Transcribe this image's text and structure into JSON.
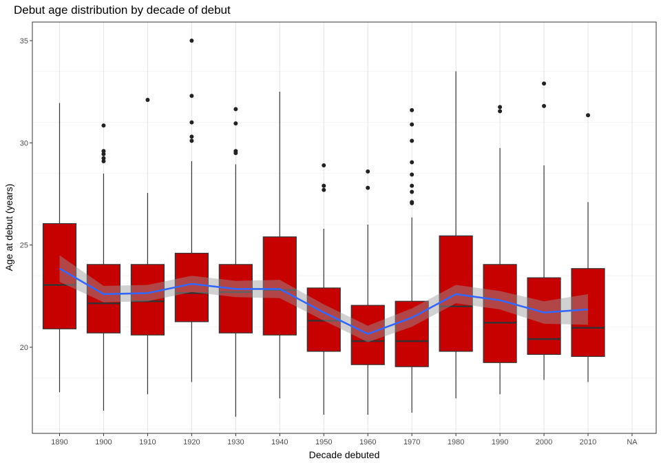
{
  "chart_data": {
    "type": "boxplot",
    "title": "Debut age distribution by decade of debut",
    "xlabel": "Decade debuted",
    "ylabel": "Age at debut (years)",
    "categories": [
      "1890",
      "1900",
      "1910",
      "1920",
      "1930",
      "1940",
      "1950",
      "1960",
      "1970",
      "1980",
      "1990",
      "2000",
      "2010",
      "NA"
    ],
    "yticks": [
      20,
      25,
      30,
      35
    ],
    "ylim": [
      16.0,
      36.0
    ],
    "grid": true,
    "boxes": [
      {
        "category": "1890",
        "whisker_low": 17.8,
        "q1": 20.9,
        "median": 23.05,
        "q3": 26.05,
        "whisker_high": 31.95,
        "outliers": []
      },
      {
        "category": "1900",
        "whisker_low": 16.9,
        "q1": 20.7,
        "median": 22.15,
        "q3": 24.05,
        "whisker_high": 28.5,
        "outliers": [
          30.85,
          29.6,
          29.45,
          29.25,
          29.1
        ]
      },
      {
        "category": "1910",
        "whisker_low": 17.7,
        "q1": 20.6,
        "median": 22.25,
        "q3": 24.05,
        "whisker_high": 27.55,
        "outliers": [
          32.1
        ]
      },
      {
        "category": "1920",
        "whisker_low": 18.3,
        "q1": 21.25,
        "median": 22.65,
        "q3": 24.6,
        "whisker_high": 29.1,
        "outliers": [
          35.0,
          32.3,
          31.0,
          30.3,
          30.1
        ]
      },
      {
        "category": "1930",
        "whisker_low": 16.6,
        "q1": 20.7,
        "median": 22.7,
        "q3": 24.05,
        "whisker_high": 28.95,
        "outliers": [
          31.65,
          30.95,
          29.6,
          29.5
        ]
      },
      {
        "category": "1940",
        "whisker_low": 17.5,
        "q1": 20.6,
        "median": 22.8,
        "q3": 25.4,
        "whisker_high": 32.5,
        "outliers": []
      },
      {
        "category": "1950",
        "whisker_low": 16.7,
        "q1": 19.8,
        "median": 21.3,
        "q3": 22.9,
        "whisker_high": 25.8,
        "outliers": [
          28.9,
          27.9,
          27.7
        ]
      },
      {
        "category": "1960",
        "whisker_low": 16.7,
        "q1": 19.15,
        "median": 20.3,
        "q3": 22.05,
        "whisker_high": 26.0,
        "outliers": [
          28.6,
          27.8
        ]
      },
      {
        "category": "1970",
        "whisker_low": 16.8,
        "q1": 19.05,
        "median": 20.3,
        "q3": 22.25,
        "whisker_high": 26.35,
        "outliers": [
          31.6,
          30.9,
          30.1,
          29.05,
          28.45,
          27.9,
          27.6,
          27.1,
          27.05
        ]
      },
      {
        "category": "1980",
        "whisker_low": 17.5,
        "q1": 19.8,
        "median": 22.0,
        "q3": 25.45,
        "whisker_high": 33.5,
        "outliers": []
      },
      {
        "category": "1990",
        "whisker_low": 17.7,
        "q1": 19.25,
        "median": 21.2,
        "q3": 24.05,
        "whisker_high": 29.75,
        "outliers": [
          31.75,
          31.55
        ]
      },
      {
        "category": "2000",
        "whisker_low": 18.4,
        "q1": 19.65,
        "median": 20.4,
        "q3": 23.4,
        "whisker_high": 28.9,
        "outliers": [
          32.9,
          31.8
        ]
      },
      {
        "category": "2010",
        "whisker_low": 18.3,
        "q1": 19.55,
        "median": 20.95,
        "q3": 23.85,
        "whisker_high": 27.1,
        "outliers": [
          31.35
        ]
      }
    ],
    "trend": {
      "categories": [
        "1890",
        "1900",
        "1910",
        "1920",
        "1930",
        "1940",
        "1950",
        "1960",
        "1970",
        "1980",
        "1990",
        "2000",
        "2010"
      ],
      "values": [
        23.85,
        22.6,
        22.65,
        23.1,
        22.85,
        22.85,
        21.7,
        20.65,
        21.45,
        22.6,
        22.3,
        21.7,
        21.85
      ],
      "ci_low": [
        23.2,
        22.2,
        22.25,
        22.7,
        22.45,
        22.4,
        21.3,
        20.25,
        21.0,
        22.15,
        21.85,
        21.15,
        21.1
      ],
      "ci_high": [
        24.5,
        23.0,
        23.05,
        23.5,
        23.25,
        23.3,
        22.1,
        21.05,
        21.9,
        23.05,
        22.75,
        22.25,
        22.6
      ]
    },
    "colors": {
      "box_fill": "#c70000",
      "box_line": "#333333",
      "trend_line": "#3366ff",
      "ci_band": "#999999",
      "outlier": "#222222",
      "grid_major": "#e6e6e6",
      "grid_minor": "#f2f2f2",
      "panel_border": "#333333"
    }
  }
}
